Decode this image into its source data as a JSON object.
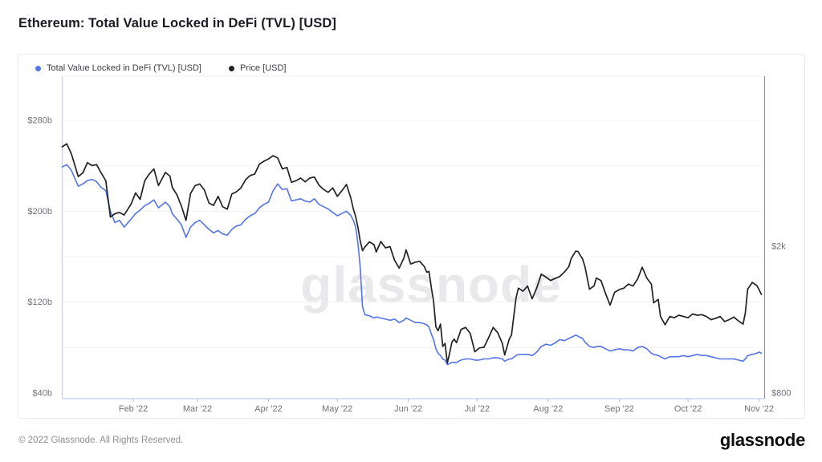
{
  "header": {
    "title": "Ethereum: Total Value Locked in DeFi (TVL) [USD]"
  },
  "watermark": "glassnode",
  "footer": {
    "copyright": "© 2022 Glassnode. All Rights Reserved.",
    "brand": "glassnode"
  },
  "colors": {
    "tvl_line": "#5574e8",
    "price_line": "#222226",
    "grid": "#f3f3f5",
    "axis_left_border": "#c6d3f2",
    "axis_bottom_border": "#c6d3f2",
    "axis_right_border": "#8e8e96",
    "axis_top_border": "#f2f2f4",
    "tick_text": "#71737a",
    "tick_mark": "#b9bcc4"
  },
  "legend": {
    "items": [
      {
        "label": "Total Value Locked in DeFi (TVL) [USD]",
        "color": "#5574e8"
      },
      {
        "label": "Price [USD]",
        "color": "#222226"
      }
    ]
  },
  "chart_data": {
    "type": "line",
    "title": "Ethereum: Total Value Locked in DeFi (TVL) [USD]",
    "x_range": [
      "2022-01-01",
      "2022-11-02"
    ],
    "grid": true,
    "legend_position": "top-left",
    "x_ticks": [
      {
        "label": "Feb '22",
        "date": "2022-02-01"
      },
      {
        "label": "Mar '22",
        "date": "2022-03-01"
      },
      {
        "label": "Apr '22",
        "date": "2022-04-01"
      },
      {
        "label": "May '22",
        "date": "2022-05-01"
      },
      {
        "label": "Jun '22",
        "date": "2022-06-01"
      },
      {
        "label": "Jul '22",
        "date": "2022-07-01"
      },
      {
        "label": "Aug '22",
        "date": "2022-08-01"
      },
      {
        "label": "Sep '22",
        "date": "2022-09-01"
      },
      {
        "label": "Oct '22",
        "date": "2022-10-01"
      },
      {
        "label": "Nov '22",
        "date": "2022-11-01"
      }
    ],
    "y_left": {
      "name": "Total Value Locked in DeFi (TVL) [USD]",
      "scale": "linear",
      "unit": "billion USD",
      "ticks": [
        {
          "label": "$280b",
          "value": 280
        },
        {
          "label": "$200b",
          "value": 200
        },
        {
          "label": "$120b",
          "value": 120
        },
        {
          "label": "$40b",
          "value": 40
        }
      ],
      "grid_values": [
        280,
        240,
        200,
        160,
        120,
        80
      ]
    },
    "y_right": {
      "name": "Price [USD]",
      "scale": "log",
      "unit": "USD",
      "ticks": [
        {
          "label": "$2k",
          "value": 2000
        },
        {
          "label": "$800",
          "value": 800
        }
      ]
    },
    "dates": [
      "2022-01-01",
      "2022-01-03",
      "2022-01-05",
      "2022-01-08",
      "2022-01-10",
      "2022-01-12",
      "2022-01-14",
      "2022-01-16",
      "2022-01-18",
      "2022-01-20",
      "2022-01-22",
      "2022-01-24",
      "2022-01-26",
      "2022-01-28",
      "2022-01-31",
      "2022-02-02",
      "2022-02-04",
      "2022-02-06",
      "2022-02-08",
      "2022-02-10",
      "2022-02-12",
      "2022-02-15",
      "2022-02-17",
      "2022-02-18",
      "2022-02-20",
      "2022-02-22",
      "2022-02-24",
      "2022-02-26",
      "2022-02-28",
      "2022-03-02",
      "2022-03-04",
      "2022-03-06",
      "2022-03-08",
      "2022-03-10",
      "2022-03-12",
      "2022-03-14",
      "2022-03-16",
      "2022-03-18",
      "2022-03-20",
      "2022-03-22",
      "2022-03-24",
      "2022-03-26",
      "2022-03-28",
      "2022-03-30",
      "2022-04-01",
      "2022-04-03",
      "2022-04-05",
      "2022-04-07",
      "2022-04-09",
      "2022-04-11",
      "2022-04-13",
      "2022-04-15",
      "2022-04-17",
      "2022-04-19",
      "2022-04-21",
      "2022-04-23",
      "2022-04-25",
      "2022-04-27",
      "2022-04-29",
      "2022-05-01",
      "2022-05-03",
      "2022-05-05",
      "2022-05-07",
      "2022-05-08",
      "2022-05-09",
      "2022-05-10",
      "2022-05-11",
      "2022-05-12",
      "2022-05-13",
      "2022-05-15",
      "2022-05-17",
      "2022-05-18",
      "2022-05-20",
      "2022-05-22",
      "2022-05-24",
      "2022-05-26",
      "2022-05-28",
      "2022-05-30",
      "2022-05-31",
      "2022-06-02",
      "2022-06-04",
      "2022-06-06",
      "2022-06-08",
      "2022-06-09",
      "2022-06-10",
      "2022-06-11",
      "2022-06-12",
      "2022-06-13",
      "2022-06-14",
      "2022-06-15",
      "2022-06-16",
      "2022-06-17",
      "2022-06-18",
      "2022-06-19",
      "2022-06-20",
      "2022-06-21",
      "2022-06-22",
      "2022-06-24",
      "2022-06-26",
      "2022-06-28",
      "2022-06-30",
      "2022-07-02",
      "2022-07-04",
      "2022-07-06",
      "2022-07-08",
      "2022-07-10",
      "2022-07-12",
      "2022-07-13",
      "2022-07-15",
      "2022-07-16",
      "2022-07-18",
      "2022-07-19",
      "2022-07-21",
      "2022-07-23",
      "2022-07-25",
      "2022-07-27",
      "2022-07-29",
      "2022-07-31",
      "2022-08-02",
      "2022-08-04",
      "2022-08-06",
      "2022-08-08",
      "2022-08-10",
      "2022-08-11",
      "2022-08-13",
      "2022-08-14",
      "2022-08-16",
      "2022-08-17",
      "2022-08-19",
      "2022-08-21",
      "2022-08-22",
      "2022-08-24",
      "2022-08-26",
      "2022-08-28",
      "2022-08-30",
      "2022-09-01",
      "2022-09-03",
      "2022-09-05",
      "2022-09-07",
      "2022-09-09",
      "2022-09-11",
      "2022-09-13",
      "2022-09-15",
      "2022-09-16",
      "2022-09-18",
      "2022-09-19",
      "2022-09-21",
      "2022-09-23",
      "2022-09-25",
      "2022-09-27",
      "2022-09-29",
      "2022-10-01",
      "2022-10-03",
      "2022-10-05",
      "2022-10-07",
      "2022-10-09",
      "2022-10-11",
      "2022-10-13",
      "2022-10-15",
      "2022-10-17",
      "2022-10-19",
      "2022-10-21",
      "2022-10-23",
      "2022-10-25",
      "2022-10-26",
      "2022-10-27",
      "2022-10-29",
      "2022-10-31",
      "2022-11-01",
      "2022-11-02"
    ],
    "series": [
      {
        "name": "Total Value Locked in DeFi (TVL) [USD]",
        "axis": "left",
        "color": "#5574e8",
        "width": 1.6,
        "values": [
          239,
          241,
          236,
          222,
          224,
          227,
          228,
          226,
          221,
          218,
          200,
          190,
          192,
          186,
          193,
          198,
          201,
          205,
          207,
          210,
          203,
          208,
          204,
          198,
          193,
          188,
          177,
          186,
          190,
          192,
          188,
          184,
          181,
          183,
          180,
          179,
          184,
          187,
          188,
          193,
          196,
          198,
          203,
          206,
          208,
          218,
          224,
          219,
          220,
          209,
          210,
          211,
          209,
          208,
          211,
          206,
          204,
          202,
          199,
          196,
          198,
          200,
          196,
          192,
          186,
          172,
          151,
          116,
          109,
          108,
          106,
          107,
          106,
          105,
          104,
          105,
          102,
          104,
          106,
          104,
          102,
          102,
          101,
          100,
          98,
          92,
          87,
          79,
          75,
          73,
          70,
          69,
          65,
          66,
          67,
          67,
          67,
          69,
          70,
          70,
          69,
          69,
          70,
          70,
          71,
          71,
          70,
          68,
          70,
          70,
          73,
          74,
          74,
          74,
          73,
          76,
          81,
          83,
          82,
          84,
          87,
          86,
          88,
          89,
          91,
          90,
          88,
          85,
          81,
          80,
          81,
          81,
          79,
          77,
          78,
          79,
          78,
          78,
          77,
          80,
          81,
          79,
          75,
          74,
          73,
          72,
          70,
          72,
          72,
          72,
          73,
          72,
          73,
          74,
          73,
          73,
          72,
          71,
          70,
          70,
          70,
          70,
          69,
          68,
          70,
          73,
          74,
          75,
          76,
          75
        ]
      },
      {
        "name": "Price [USD]",
        "axis": "right",
        "color": "#222226",
        "width": 1.7,
        "values": [
          3720,
          3790,
          3560,
          3090,
          3160,
          3370,
          3310,
          3330,
          3160,
          3010,
          2400,
          2450,
          2470,
          2430,
          2600,
          2790,
          2680,
          3010,
          3140,
          3240,
          2920,
          3170,
          3100,
          2890,
          2760,
          2570,
          2350,
          2780,
          2920,
          2950,
          2840,
          2620,
          2580,
          2730,
          2560,
          2520,
          2770,
          2810,
          2880,
          3030,
          3110,
          3140,
          3340,
          3400,
          3450,
          3520,
          3470,
          3240,
          3270,
          2980,
          3010,
          3060,
          2990,
          3060,
          3080,
          2930,
          2850,
          2800,
          2880,
          2730,
          2830,
          2940,
          2690,
          2520,
          2410,
          2250,
          2070,
          1945,
          1990,
          2055,
          2020,
          1930,
          2060,
          1980,
          1995,
          1830,
          1745,
          1855,
          1955,
          1790,
          1810,
          1820,
          1760,
          1700,
          1710,
          1545,
          1420,
          1210,
          1180,
          1230,
          1070,
          1090,
          965,
          1025,
          1100,
          1120,
          1095,
          1190,
          1205,
          1160,
          1035,
          1060,
          1065,
          1130,
          1205,
          1165,
          1090,
          1015,
          1120,
          1150,
          1450,
          1540,
          1510,
          1560,
          1440,
          1540,
          1680,
          1650,
          1615,
          1635,
          1655,
          1700,
          1760,
          1850,
          1940,
          1935,
          1845,
          1765,
          1530,
          1560,
          1640,
          1615,
          1490,
          1385,
          1500,
          1525,
          1540,
          1580,
          1560,
          1630,
          1755,
          1640,
          1580,
          1405,
          1435,
          1290,
          1225,
          1290,
          1280,
          1300,
          1290,
          1280,
          1310,
          1300,
          1305,
          1290,
          1265,
          1275,
          1290,
          1250,
          1265,
          1285,
          1255,
          1230,
          1320,
          1530,
          1595,
          1565,
          1525,
          1480
        ]
      }
    ]
  }
}
